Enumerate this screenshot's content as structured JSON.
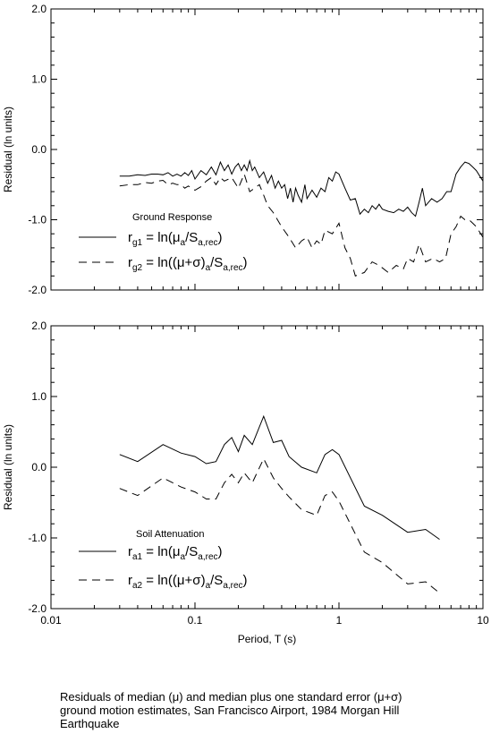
{
  "caption": {
    "line1": "Residuals of median (μ) and median plus one standard error (μ+σ)",
    "line2": "ground motion estimates, San Francisco Airport, 1984 Morgan Hill",
    "line3": "Earthquake"
  },
  "chart_data": [
    {
      "type": "line",
      "title": "Ground Response",
      "ylabel": "Residual (ln units)",
      "xlabel": "",
      "xscale": "log",
      "xlim": [
        0.01,
        10
      ],
      "ylim": [
        -2.0,
        2.0
      ],
      "yticks": [
        "2.0",
        "1.0",
        "0.0",
        "-1.0",
        "-2.0"
      ],
      "legend": [
        {
          "dash": "solid",
          "sym": "r",
          "sub": "g1",
          "eq1": " = ln(",
          "mu": "μ",
          "sub2": "a",
          "mid": "/S",
          "sub3": "a,rec",
          "end": ")"
        },
        {
          "dash": "dashed",
          "sym": "r",
          "sub": "g2",
          "eq1": " = ln((",
          "mu": "μ+σ",
          "paren": ")",
          "sub2": "a",
          "mid": "/S",
          "sub3": "a,rec",
          "end": ")"
        }
      ],
      "series": [
        {
          "dash": "solid",
          "x": [
            0.03,
            0.035,
            0.04,
            0.045,
            0.05,
            0.055,
            0.06,
            0.065,
            0.07,
            0.075,
            0.08,
            0.085,
            0.09,
            0.095,
            0.1,
            0.11,
            0.12,
            0.13,
            0.14,
            0.15,
            0.16,
            0.17,
            0.18,
            0.19,
            0.2,
            0.21,
            0.22,
            0.23,
            0.24,
            0.25,
            0.26,
            0.28,
            0.3,
            0.32,
            0.34,
            0.36,
            0.38,
            0.4,
            0.42,
            0.44,
            0.46,
            0.48,
            0.5,
            0.52,
            0.55,
            0.58,
            0.6,
            0.65,
            0.7,
            0.75,
            0.8,
            0.85,
            0.9,
            0.95,
            1.0,
            1.1,
            1.2,
            1.3,
            1.4,
            1.5,
            1.6,
            1.7,
            1.8,
            1.9,
            2.0,
            2.2,
            2.4,
            2.6,
            2.8,
            3.0,
            3.2,
            3.4,
            3.6,
            3.8,
            4.0,
            4.4,
            4.8,
            5.2,
            5.6,
            6.0,
            6.5,
            7.0,
            7.5,
            8.0,
            8.5,
            9.0,
            10.0
          ],
          "values": [
            -0.38,
            -0.38,
            -0.36,
            -0.37,
            -0.35,
            -0.35,
            -0.36,
            -0.33,
            -0.38,
            -0.35,
            -0.38,
            -0.33,
            -0.37,
            -0.3,
            -0.42,
            -0.3,
            -0.36,
            -0.25,
            -0.36,
            -0.18,
            -0.3,
            -0.22,
            -0.35,
            -0.25,
            -0.2,
            -0.3,
            -0.22,
            -0.3,
            -0.16,
            -0.3,
            -0.25,
            -0.4,
            -0.32,
            -0.48,
            -0.37,
            -0.55,
            -0.45,
            -0.55,
            -0.5,
            -0.7,
            -0.55,
            -0.75,
            -0.55,
            -0.65,
            -0.75,
            -0.5,
            -0.7,
            -0.58,
            -0.68,
            -0.55,
            -0.6,
            -0.4,
            -0.45,
            -0.32,
            -0.35,
            -0.55,
            -0.72,
            -0.7,
            -0.92,
            -0.85,
            -0.9,
            -0.8,
            -0.85,
            -0.78,
            -0.85,
            -0.88,
            -0.9,
            -0.85,
            -0.88,
            -0.82,
            -0.9,
            -0.95,
            -0.75,
            -0.55,
            -0.8,
            -0.7,
            -0.75,
            -0.7,
            -0.6,
            -0.6,
            -0.35,
            -0.25,
            -0.18,
            -0.2,
            -0.25,
            -0.3,
            -0.45
          ]
        },
        {
          "dash": "dashed",
          "x": [
            0.03,
            0.035,
            0.04,
            0.045,
            0.05,
            0.055,
            0.06,
            0.065,
            0.07,
            0.075,
            0.08,
            0.085,
            0.09,
            0.1,
            0.11,
            0.12,
            0.13,
            0.14,
            0.15,
            0.16,
            0.18,
            0.2,
            0.22,
            0.24,
            0.26,
            0.28,
            0.3,
            0.32,
            0.35,
            0.4,
            0.45,
            0.5,
            0.55,
            0.6,
            0.65,
            0.7,
            0.75,
            0.8,
            0.9,
            1.0,
            1.1,
            1.2,
            1.3,
            1.5,
            1.7,
            1.9,
            2.2,
            2.5,
            2.8,
            3.0,
            3.3,
            3.6,
            4.0,
            4.5,
            5.0,
            5.5,
            6.0,
            6.5,
            7.0,
            7.5,
            8.0,
            8.5,
            9.0,
            10.0
          ],
          "values": [
            -0.52,
            -0.5,
            -0.5,
            -0.47,
            -0.48,
            -0.45,
            -0.44,
            -0.5,
            -0.48,
            -0.5,
            -0.5,
            -0.55,
            -0.52,
            -0.58,
            -0.53,
            -0.45,
            -0.4,
            -0.5,
            -0.4,
            -0.45,
            -0.4,
            -0.55,
            -0.35,
            -0.6,
            -0.55,
            -0.5,
            -0.65,
            -0.8,
            -0.9,
            -1.1,
            -1.25,
            -1.4,
            -1.3,
            -1.25,
            -1.4,
            -1.3,
            -1.35,
            -1.15,
            -1.2,
            -1.05,
            -1.4,
            -1.55,
            -1.8,
            -1.75,
            -1.6,
            -1.65,
            -1.75,
            -1.65,
            -1.7,
            -1.55,
            -1.6,
            -1.35,
            -1.6,
            -1.55,
            -1.6,
            -1.55,
            -1.2,
            -1.1,
            -0.95,
            -1.0,
            -1.0,
            -1.05,
            -1.1,
            -1.25
          ]
        }
      ]
    },
    {
      "type": "line",
      "title": "Soil Attenuation",
      "ylabel": "Residual (ln units)",
      "xlabel": "Period, T (s)",
      "xscale": "log",
      "xlim": [
        0.01,
        10
      ],
      "ylim": [
        -2.0,
        2.0
      ],
      "yticks": [
        "2.0",
        "1.0",
        "0.0",
        "-1.0",
        "-2.0"
      ],
      "xticks": [
        "0.01",
        "0.1",
        "1",
        "10"
      ],
      "legend": [
        {
          "dash": "solid",
          "sym": "r",
          "sub": "a1",
          "eq1": " = ln(",
          "mu": "μ",
          "sub2": "a",
          "mid": "/S",
          "sub3": "a,rec",
          "end": ")"
        },
        {
          "dash": "dashed",
          "sym": "r",
          "sub": "a2",
          "eq1": " = ln((",
          "mu": "μ+σ",
          "paren": ")",
          "sub2": "a",
          "mid": "/S",
          "sub3": "a,rec",
          "end": ")"
        }
      ],
      "series": [
        {
          "dash": "solid",
          "x": [
            0.03,
            0.04,
            0.06,
            0.08,
            0.1,
            0.12,
            0.14,
            0.16,
            0.18,
            0.2,
            0.22,
            0.25,
            0.3,
            0.35,
            0.4,
            0.45,
            0.55,
            0.7,
            0.8,
            0.9,
            1.0,
            1.5,
            2.0,
            3.0,
            4.0,
            5.0
          ],
          "values": [
            0.18,
            0.08,
            0.32,
            0.2,
            0.15,
            0.05,
            0.08,
            0.32,
            0.42,
            0.22,
            0.45,
            0.32,
            0.72,
            0.35,
            0.38,
            0.15,
            0.0,
            -0.08,
            0.18,
            0.25,
            0.18,
            -0.55,
            -0.68,
            -0.92,
            -0.88,
            -1.02
          ]
        },
        {
          "dash": "dashed",
          "x": [
            0.03,
            0.04,
            0.06,
            0.08,
            0.1,
            0.12,
            0.14,
            0.16,
            0.18,
            0.2,
            0.22,
            0.25,
            0.3,
            0.35,
            0.4,
            0.45,
            0.55,
            0.7,
            0.8,
            0.9,
            1.0,
            1.5,
            2.0,
            3.0,
            4.0,
            5.0
          ],
          "values": [
            -0.3,
            -0.4,
            -0.15,
            -0.28,
            -0.35,
            -0.45,
            -0.45,
            -0.22,
            -0.1,
            -0.22,
            -0.08,
            -0.22,
            0.12,
            -0.15,
            -0.3,
            -0.42,
            -0.6,
            -0.68,
            -0.4,
            -0.35,
            -0.48,
            -1.2,
            -1.35,
            -1.65,
            -1.62,
            -1.78
          ]
        }
      ]
    }
  ]
}
